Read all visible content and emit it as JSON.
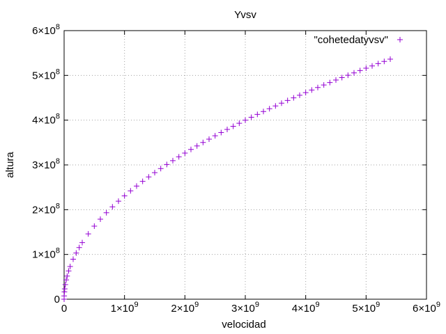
{
  "chart_data": {
    "type": "scatter",
    "title": "Yvsv",
    "xlabel": "velocidad",
    "ylabel": "altura",
    "xlim": [
      0,
      6000000000
    ],
    "ylim": [
      0,
      600000000
    ],
    "grid": true,
    "legend_position": "top-right",
    "x_ticks": [
      {
        "value": 0,
        "mant": "0",
        "exp": ""
      },
      {
        "value": 1000000000,
        "mant": "1×10",
        "exp": "9"
      },
      {
        "value": 2000000000,
        "mant": "2×10",
        "exp": "9"
      },
      {
        "value": 3000000000,
        "mant": "3×10",
        "exp": "9"
      },
      {
        "value": 4000000000,
        "mant": "4×10",
        "exp": "9"
      },
      {
        "value": 5000000000,
        "mant": "5×10",
        "exp": "9"
      },
      {
        "value": 6000000000,
        "mant": "6×10",
        "exp": "9"
      }
    ],
    "y_ticks": [
      {
        "value": 0,
        "mant": "0",
        "exp": ""
      },
      {
        "value": 100000000,
        "mant": "1×10",
        "exp": "8"
      },
      {
        "value": 200000000,
        "mant": "2×10",
        "exp": "8"
      },
      {
        "value": 300000000,
        "mant": "3×10",
        "exp": "8"
      },
      {
        "value": 400000000,
        "mant": "4×10",
        "exp": "8"
      },
      {
        "value": 500000000,
        "mant": "5×10",
        "exp": "8"
      },
      {
        "value": 600000000,
        "mant": "6×10",
        "exp": "8"
      }
    ],
    "series": [
      {
        "name": "\"cohetedatyvsv\"",
        "color": "#9400d3",
        "marker": "plus",
        "x": [
          0,
          1000000,
          5000000,
          10000000,
          20000000,
          35000000,
          50000000,
          75000000,
          100000000,
          150000000,
          200000000,
          250000000,
          300000000,
          400000000,
          500000000,
          600000000,
          700000000,
          800000000,
          900000000,
          1000000000,
          1100000000,
          1200000000,
          1300000000,
          1400000000,
          1500000000,
          1600000000,
          1700000000,
          1800000000,
          1900000000,
          2000000000,
          2100000000,
          2200000000,
          2300000000,
          2400000000,
          2500000000,
          2600000000,
          2700000000,
          2800000000,
          2900000000,
          3000000000,
          3100000000,
          3200000000,
          3300000000,
          3400000000,
          3500000000,
          3600000000,
          3700000000,
          3800000000,
          3900000000,
          4000000000,
          4100000000,
          4200000000,
          4300000000,
          4400000000,
          4500000000,
          4600000000,
          4700000000,
          4800000000,
          4900000000,
          5000000000,
          5100000000,
          5200000000,
          5300000000,
          5400000000
        ],
        "y": [
          0,
          7300000,
          16300000,
          23100000,
          32600000,
          43200000,
          51600000,
          63200000,
          73000000,
          89400000,
          103200000,
          115400000,
          126400000,
          146000000,
          163200000,
          178800000,
          193100000,
          206400000,
          219000000,
          230800000,
          242100000,
          252800000,
          263200000,
          273100000,
          282700000,
          291900000,
          300900000,
          309600000,
          318100000,
          326400000,
          334500000,
          342300000,
          350100000,
          357600000,
          365000000,
          372200000,
          379300000,
          386300000,
          393100000,
          399800000,
          406400000,
          412900000,
          419300000,
          425600000,
          431800000,
          437900000,
          443900000,
          449800000,
          455700000,
          461500000,
          467200000,
          472900000,
          478500000,
          484000000,
          489600000,
          495000000,
          500300000,
          505600000,
          510800000,
          516000000,
          521200000,
          526300000,
          531300000,
          536300000
        ]
      }
    ]
  }
}
